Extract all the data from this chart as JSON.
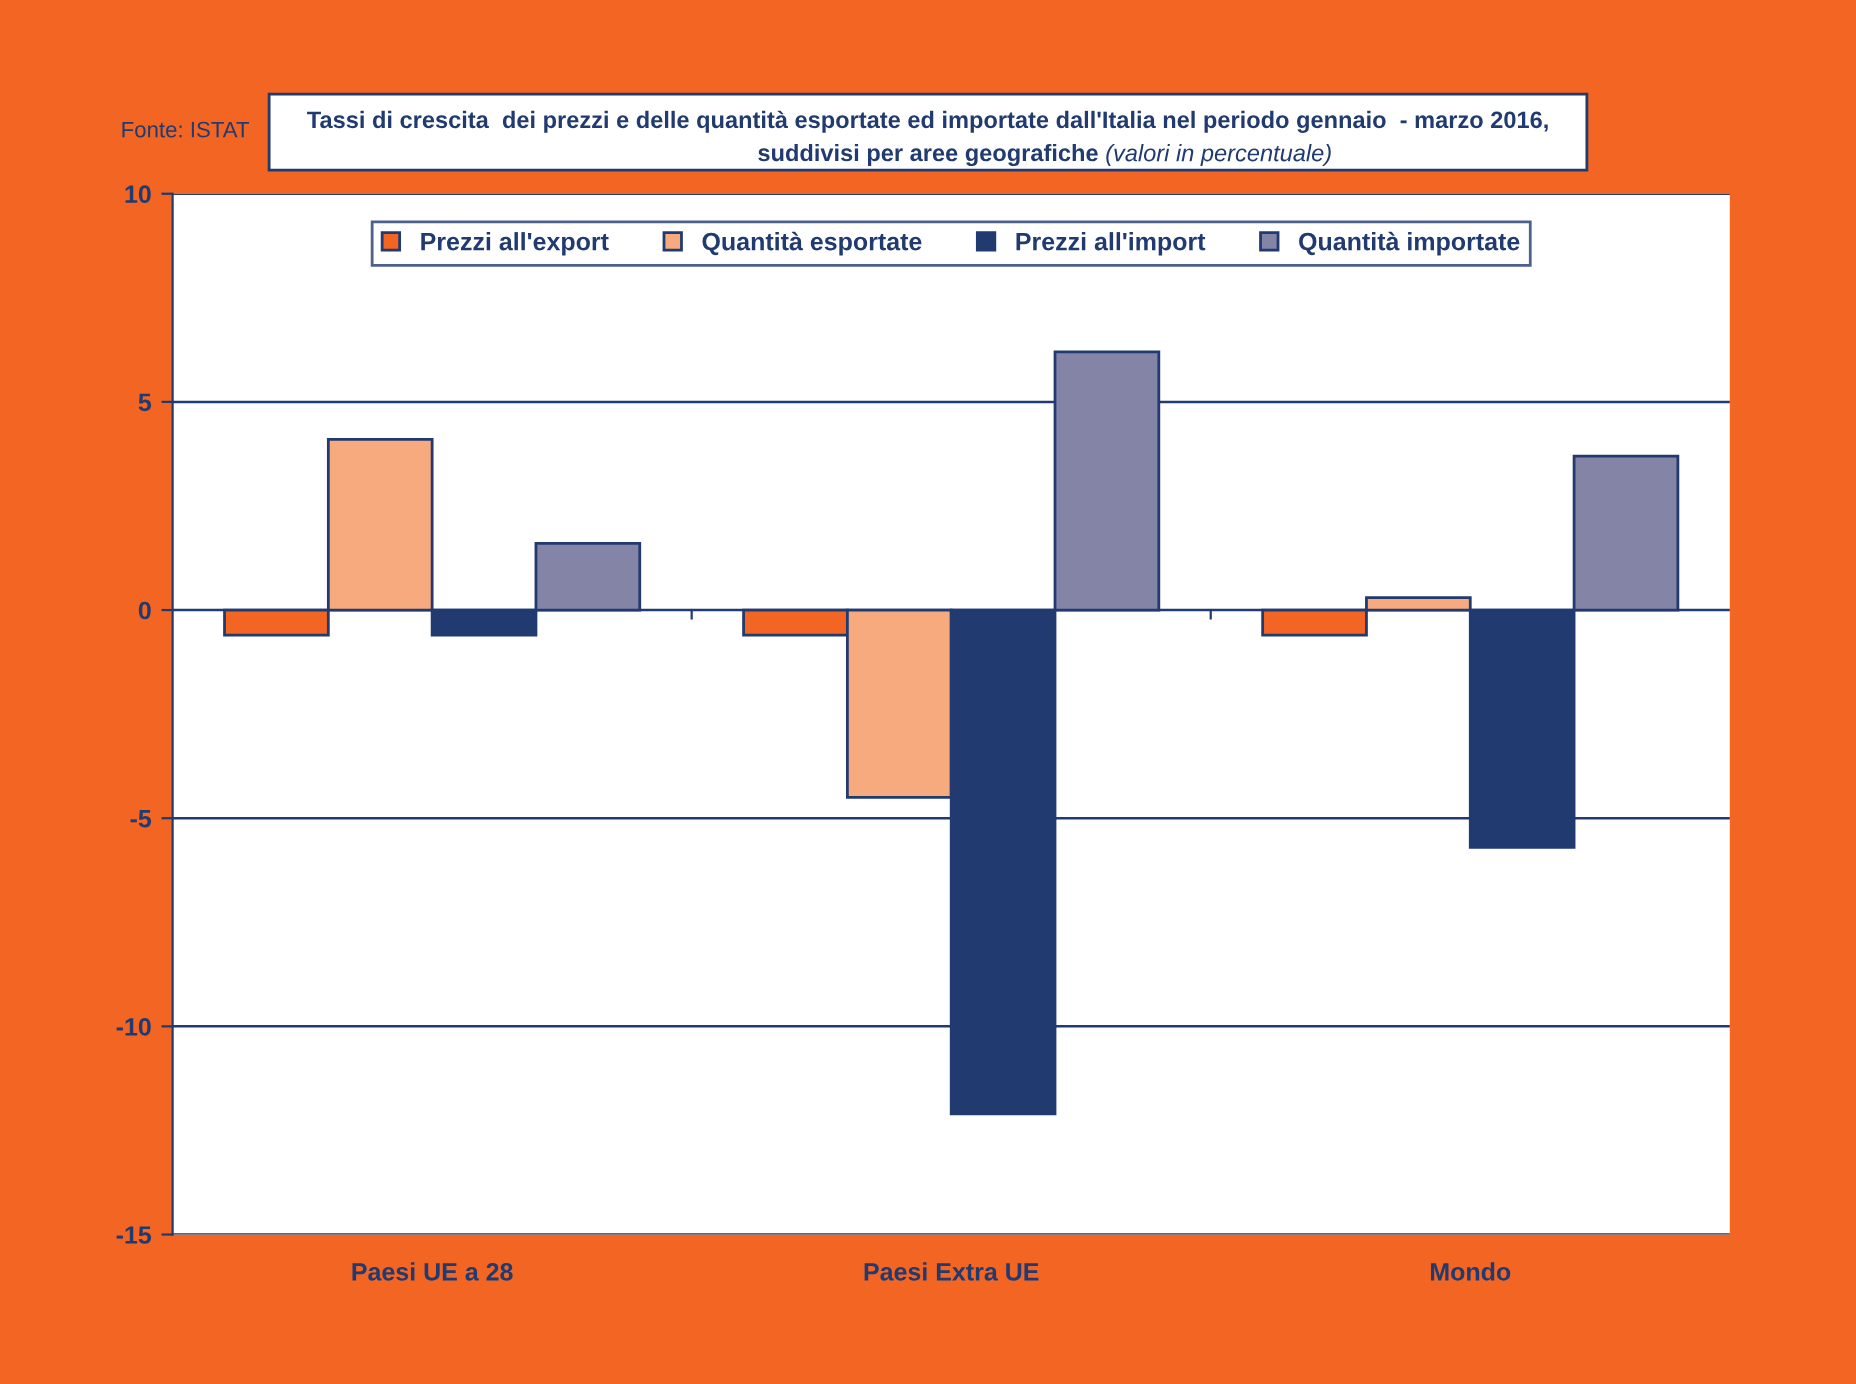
{
  "chart_data": {
    "type": "bar",
    "title": "Tassi di crescita  dei prezzi e delle quantità esportate ed importate dall'Italia nel periodo gennaio  - marzo 2016,\nsuddivisi per aree geografiche",
    "subtitle": "(valori in percentuale)",
    "annotations": [
      "Fonte: ISTAT"
    ],
    "categories": [
      "Paesi UE a 28",
      "Paesi Extra UE",
      "Mondo"
    ],
    "series": [
      {
        "name": "Prezzi all'export",
        "color": "#f26522",
        "values": [
          -0.6,
          -0.6,
          -0.6
        ]
      },
      {
        "name": "Quantità esportate",
        "color": "#f6aa7e",
        "values": [
          4.1,
          -4.5,
          0.3
        ]
      },
      {
        "name": "Prezzi all'import",
        "color": "#213a70",
        "values": [
          -0.6,
          -12.1,
          -5.7
        ]
      },
      {
        "name": "Quantità importate",
        "color": "#8484a6",
        "values": [
          1.6,
          6.2,
          3.7
        ]
      }
    ],
    "ylim": [
      -15,
      10
    ],
    "yticks": [
      -15,
      -10,
      -5,
      0,
      5,
      10
    ],
    "grid": "y",
    "legend": "top"
  }
}
